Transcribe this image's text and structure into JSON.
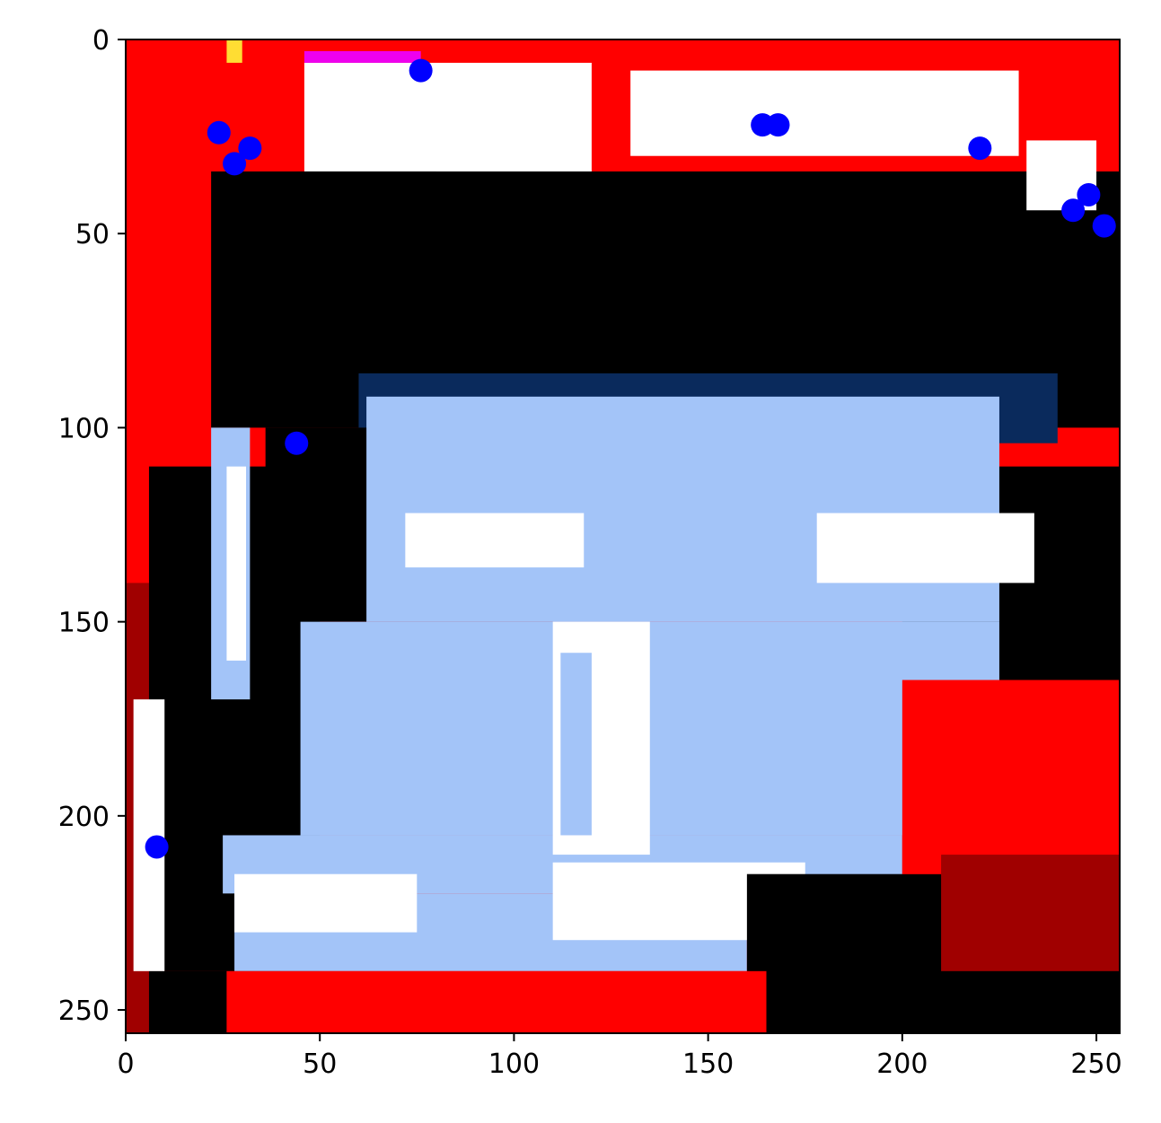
{
  "chart_data": {
    "type": "scatter",
    "background": "image",
    "title": "",
    "xlabel": "",
    "ylabel": "",
    "xlim": [
      0,
      256
    ],
    "ylim": [
      256,
      0
    ],
    "y_inverted": true,
    "grid": false,
    "legend": "none",
    "x_ticks": [
      0,
      50,
      100,
      150,
      200,
      250
    ],
    "y_ticks": [
      0,
      50,
      100,
      150,
      200,
      250
    ],
    "x_tick_labels": [
      "0",
      "50",
      "100",
      "150",
      "200",
      "250"
    ],
    "y_tick_labels": [
      "0",
      "50",
      "100",
      "150",
      "200",
      "250"
    ],
    "marker_color": "#0000ff",
    "points": [
      {
        "x": 76,
        "y": 8
      },
      {
        "x": 24,
        "y": 24
      },
      {
        "x": 32,
        "y": 28
      },
      {
        "x": 28,
        "y": 32
      },
      {
        "x": 164,
        "y": 22
      },
      {
        "x": 168,
        "y": 22
      },
      {
        "x": 220,
        "y": 28
      },
      {
        "x": 248,
        "y": 40
      },
      {
        "x": 244,
        "y": 44
      },
      {
        "x": 252,
        "y": 48
      },
      {
        "x": 44,
        "y": 104
      },
      {
        "x": 8,
        "y": 208
      }
    ],
    "image_palette": {
      "red": "#ff0000",
      "dark_red": "#a00000",
      "black": "#000000",
      "navy": "#0a2a5c",
      "light_blue": "#a3c4f8",
      "white": "#ffffff",
      "yellow": "#ffdd33",
      "magenta": "#ee00ee"
    }
  }
}
